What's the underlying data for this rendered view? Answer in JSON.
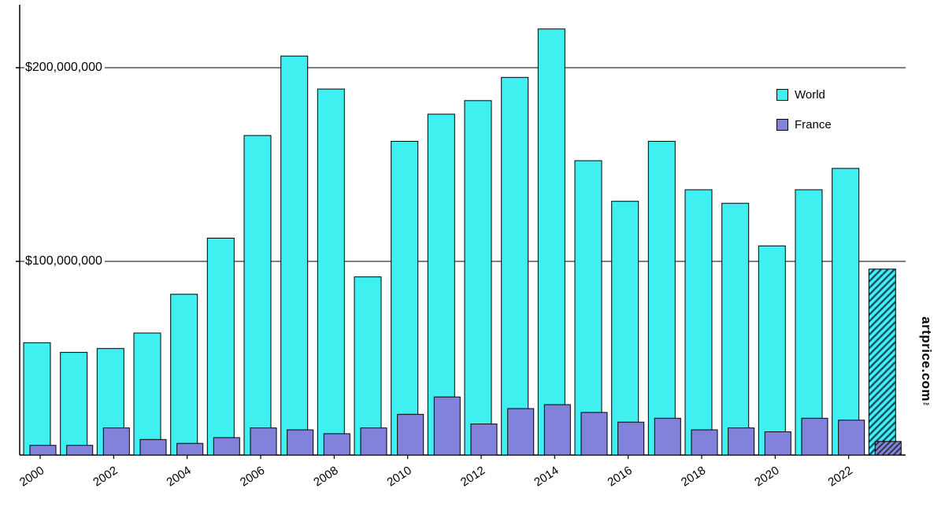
{
  "page": {
    "background": "#FFFFFF"
  },
  "legend": {
    "world": "World",
    "france": "France"
  },
  "watermark": {
    "text": "artprice.com",
    "tm": "™"
  },
  "chart_data": {
    "type": "bar",
    "title": "",
    "xlabel": "",
    "ylabel": "",
    "categories": [
      "2000",
      "2001",
      "2002",
      "2003",
      "2004",
      "2005",
      "2006",
      "2007",
      "2008",
      "2009",
      "2010",
      "2011",
      "2012",
      "2013",
      "2014",
      "2015",
      "2016",
      "2017",
      "2018",
      "2019",
      "2020",
      "2021",
      "2022",
      "2023"
    ],
    "x_tick_labels": [
      "2000",
      "2002",
      "2004",
      "2006",
      "2008",
      "2010",
      "2012",
      "2014",
      "2016",
      "2018",
      "2020",
      "2022"
    ],
    "series": [
      {
        "name": "World",
        "color": "#40EFEF",
        "values": [
          58000000,
          53000000,
          55000000,
          63000000,
          83000000,
          112000000,
          165000000,
          206000000,
          189000000,
          92000000,
          162000000,
          176000000,
          183000000,
          195000000,
          220000000,
          152000000,
          131000000,
          162000000,
          137000000,
          130000000,
          108000000,
          137000000,
          148000000,
          96000000
        ]
      },
      {
        "name": "France",
        "color": "#8282DB",
        "values": [
          5000000,
          5000000,
          14000000,
          8000000,
          6000000,
          9000000,
          14000000,
          13000000,
          11000000,
          14000000,
          21000000,
          30000000,
          16000000,
          24000000,
          26000000,
          22000000,
          17000000,
          19000000,
          13000000,
          14000000,
          12000000,
          19000000,
          18000000,
          7000000
        ]
      }
    ],
    "ylim": [
      0,
      230000000
    ],
    "y_ticks": [
      {
        "value": 100000000,
        "label": "$100,000,000"
      },
      {
        "value": 200000000,
        "label": "$200,000,000"
      }
    ],
    "grid": "horizontal",
    "legend_position": "top-right",
    "last_bar_hatched": true,
    "hatched_category": "2023"
  }
}
